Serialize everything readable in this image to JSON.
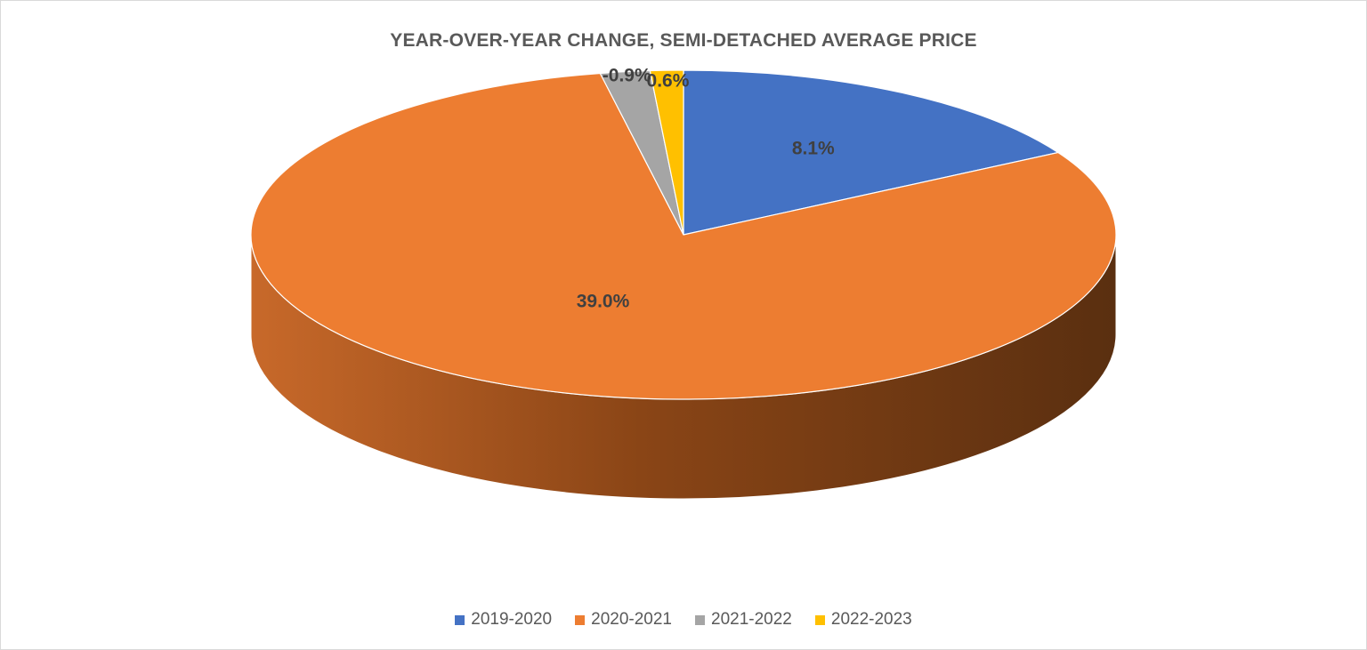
{
  "chart_data": {
    "type": "pie",
    "title": "YEAR-OVER-YEAR CHANGE, SEMI-DETACHED AVERAGE PRICE",
    "categories": [
      "2019-2020",
      "2020-2021",
      "2021-2022",
      "2022-2023"
    ],
    "values": [
      8.1,
      39.0,
      -0.9,
      0.6
    ],
    "data_labels": [
      "8.1%",
      "39.0%",
      "-0.9%",
      "0.6%"
    ],
    "colors": [
      "#4472C4",
      "#ED7D31",
      "#A5A5A5",
      "#FFC000"
    ],
    "legend_position": "bottom",
    "style": "3d"
  }
}
